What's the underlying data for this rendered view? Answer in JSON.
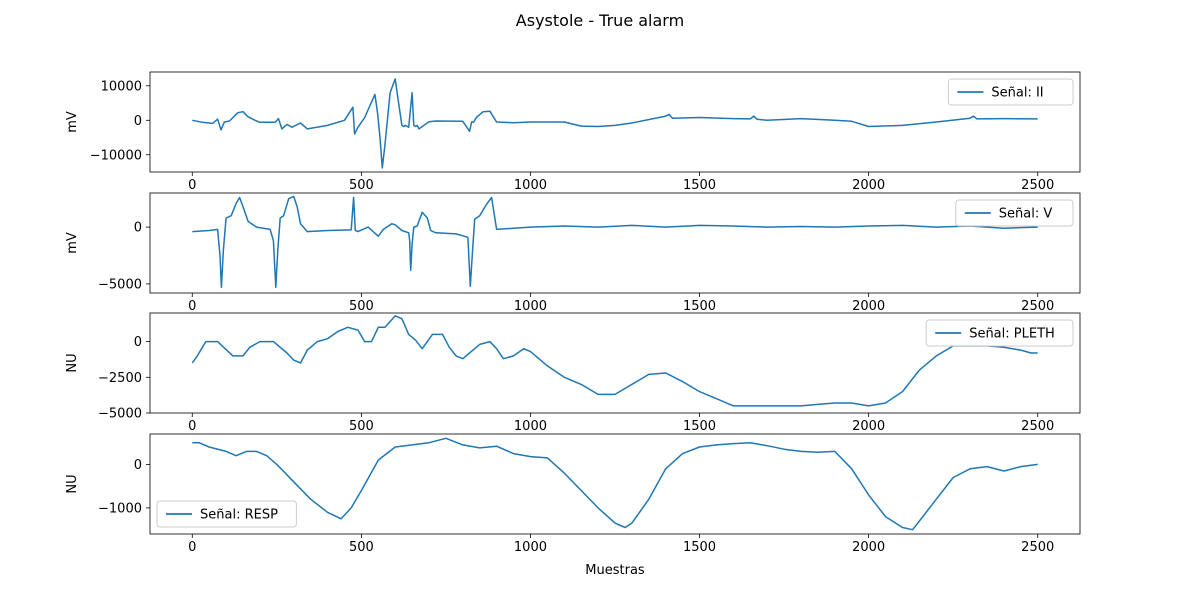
{
  "figure": {
    "title": "Asystole - True alarm",
    "xlabel": "Muestras"
  },
  "chart_data": [
    {
      "type": "line",
      "ylabel": "mV",
      "xlim": [
        -125,
        2625
      ],
      "ylim": [
        -15000,
        14000
      ],
      "x_ticks": [
        0,
        500,
        1000,
        1500,
        2000,
        2500
      ],
      "y_ticks": [
        10000,
        0,
        -10000
      ],
      "legend": {
        "label": "Señal: II",
        "loc": "upper right"
      },
      "series": [
        {
          "name": "Señal: II",
          "color": "#1f77b4",
          "x": [
            0,
            30,
            60,
            75,
            85,
            95,
            110,
            135,
            150,
            165,
            190,
            200,
            245,
            255,
            265,
            280,
            295,
            320,
            340,
            400,
            450,
            475,
            480,
            490,
            510,
            540,
            548,
            555,
            562,
            570,
            585,
            600,
            610,
            620,
            625,
            630,
            640,
            650,
            655,
            660,
            665,
            670,
            700,
            720,
            800,
            820,
            826,
            832,
            840,
            860,
            880,
            900,
            950,
            1000,
            1050,
            1100,
            1150,
            1200,
            1250,
            1300,
            1400,
            1410,
            1420,
            1500,
            1600,
            1650,
            1660,
            1670,
            1700,
            1800,
            1900,
            1950,
            2000,
            2100,
            2200,
            2300,
            2310,
            2320,
            2400,
            2500
          ],
          "y": [
            0,
            -600,
            -900,
            300,
            -2800,
            -500,
            -200,
            2200,
            2500,
            1000,
            -200,
            -600,
            -600,
            500,
            -2500,
            -1200,
            -2000,
            -800,
            -2500,
            -1500,
            0,
            3800,
            -4000,
            -2000,
            800,
            7500,
            2000,
            -5000,
            -13800,
            -7000,
            8000,
            12000,
            5000,
            -1500,
            -1800,
            -1500,
            -2000,
            8000,
            -1500,
            -1800,
            -1500,
            -2500,
            -400,
            -200,
            -300,
            -3200,
            -500,
            -600,
            800,
            2500,
            2600,
            -500,
            -700,
            -500,
            -500,
            -500,
            -1700,
            -1800,
            -1500,
            -800,
            1200,
            1700,
            600,
            800,
            500,
            400,
            1200,
            300,
            0,
            500,
            0,
            -300,
            -1800,
            -1500,
            -500,
            600,
            1200,
            400,
            500,
            400
          ]
        }
      ]
    },
    {
      "type": "line",
      "ylabel": "mV",
      "xlim": [
        -125,
        2625
      ],
      "ylim": [
        -5800,
        3000
      ],
      "x_ticks": [
        0,
        500,
        1000,
        1500,
        2000,
        2500
      ],
      "y_ticks": [
        0,
        -5000
      ],
      "legend": {
        "label": "Señal: V",
        "loc": "upper right"
      },
      "series": [
        {
          "name": "Señal: V",
          "color": "#1f77b4",
          "x": [
            0,
            50,
            75,
            82,
            86,
            92,
            100,
            115,
            130,
            140,
            150,
            165,
            190,
            230,
            240,
            247,
            253,
            260,
            270,
            285,
            300,
            310,
            320,
            340,
            400,
            470,
            477,
            482,
            490,
            520,
            550,
            565,
            590,
            600,
            620,
            640,
            643,
            646,
            650,
            655,
            665,
            680,
            695,
            705,
            720,
            780,
            815,
            822,
            829,
            835,
            850,
            870,
            885,
            900,
            1000,
            1100,
            1200,
            1300,
            1400,
            1500,
            1600,
            1700,
            1800,
            1900,
            2000,
            2100,
            2200,
            2300,
            2400,
            2500
          ],
          "y": [
            -400,
            -300,
            -200,
            -2500,
            -5300,
            -2000,
            800,
            1000,
            2100,
            2600,
            1800,
            500,
            0,
            -200,
            -1200,
            -5300,
            -2000,
            800,
            1000,
            2500,
            2700,
            1800,
            300,
            -400,
            -300,
            -250,
            2600,
            -300,
            -400,
            0,
            -800,
            -200,
            300,
            200,
            -300,
            -500,
            -1200,
            -3800,
            -1500,
            0,
            100,
            1300,
            800,
            -300,
            -500,
            -600,
            -900,
            -5200,
            -2000,
            700,
            1000,
            2000,
            2600,
            -200,
            0,
            100,
            0,
            150,
            0,
            150,
            100,
            0,
            50,
            0,
            100,
            150,
            0,
            100,
            -100,
            0
          ]
        }
      ]
    },
    {
      "type": "line",
      "ylabel": "NU",
      "xlim": [
        -125,
        2625
      ],
      "ylim": [
        -5000,
        2000
      ],
      "x_ticks": [
        0,
        500,
        1000,
        1500,
        2000,
        2500
      ],
      "y_ticks": [
        0,
        -2500,
        -5000
      ],
      "legend": {
        "label": "Señal: PLETH",
        "loc": "upper right"
      },
      "series": [
        {
          "name": "Señal: PLETH",
          "color": "#1f77b4",
          "x": [
            0,
            15,
            40,
            75,
            120,
            150,
            170,
            200,
            240,
            280,
            300,
            320,
            340,
            370,
            400,
            430,
            460,
            490,
            510,
            530,
            550,
            570,
            600,
            620,
            640,
            660,
            680,
            710,
            740,
            760,
            780,
            800,
            850,
            880,
            900,
            920,
            950,
            980,
            1000,
            1050,
            1100,
            1150,
            1200,
            1250,
            1300,
            1350,
            1400,
            1450,
            1500,
            1550,
            1600,
            1650,
            1700,
            1750,
            1800,
            1850,
            1900,
            1950,
            2000,
            2050,
            2100,
            2150,
            2200,
            2250,
            2300,
            2350,
            2400,
            2450,
            2480,
            2500
          ],
          "y": [
            -1500,
            -1000,
            0,
            0,
            -1000,
            -1000,
            -400,
            0,
            0,
            -800,
            -1300,
            -1500,
            -600,
            0,
            200,
            700,
            1000,
            800,
            0,
            0,
            1000,
            1000,
            1800,
            1600,
            500,
            100,
            -500,
            500,
            500,
            -400,
            -1000,
            -1200,
            -200,
            0,
            -500,
            -1200,
            -1000,
            -500,
            -700,
            -1700,
            -2500,
            -3000,
            -3700,
            -3700,
            -3000,
            -2300,
            -2200,
            -2800,
            -3500,
            -4000,
            -4500,
            -4500,
            -4500,
            -4500,
            -4500,
            -4400,
            -4300,
            -4300,
            -4500,
            -4300,
            -3500,
            -2000,
            -1000,
            -300,
            -300,
            -300,
            -400,
            -600,
            -800,
            -800
          ]
        }
      ]
    },
    {
      "type": "line",
      "ylabel": "NU",
      "xlim": [
        -125,
        2625
      ],
      "ylim": [
        -1600,
        700
      ],
      "x_ticks": [
        0,
        500,
        1000,
        1500,
        2000,
        2500
      ],
      "y_ticks": [
        0,
        -1000
      ],
      "legend": {
        "label": "Señal: RESP",
        "loc": "lower left"
      },
      "series": [
        {
          "name": "Señal: RESP",
          "color": "#1f77b4",
          "x": [
            0,
            20,
            50,
            100,
            130,
            160,
            190,
            220,
            250,
            300,
            350,
            400,
            440,
            470,
            500,
            550,
            600,
            650,
            700,
            750,
            800,
            850,
            900,
            950,
            1000,
            1050,
            1100,
            1150,
            1200,
            1250,
            1280,
            1300,
            1350,
            1400,
            1450,
            1500,
            1550,
            1600,
            1650,
            1700,
            1750,
            1800,
            1850,
            1900,
            1950,
            2000,
            2050,
            2100,
            2130,
            2150,
            2200,
            2250,
            2300,
            2350,
            2400,
            2450,
            2500
          ],
          "y": [
            500,
            500,
            400,
            300,
            200,
            300,
            300,
            200,
            0,
            -400,
            -800,
            -1100,
            -1250,
            -1000,
            -600,
            100,
            400,
            450,
            500,
            600,
            450,
            380,
            420,
            250,
            180,
            150,
            -200,
            -600,
            -1000,
            -1350,
            -1450,
            -1350,
            -800,
            -100,
            250,
            400,
            450,
            480,
            500,
            430,
            350,
            300,
            280,
            300,
            -100,
            -700,
            -1200,
            -1450,
            -1500,
            -1300,
            -800,
            -300,
            -100,
            -50,
            -150,
            -50,
            0
          ]
        }
      ]
    }
  ]
}
